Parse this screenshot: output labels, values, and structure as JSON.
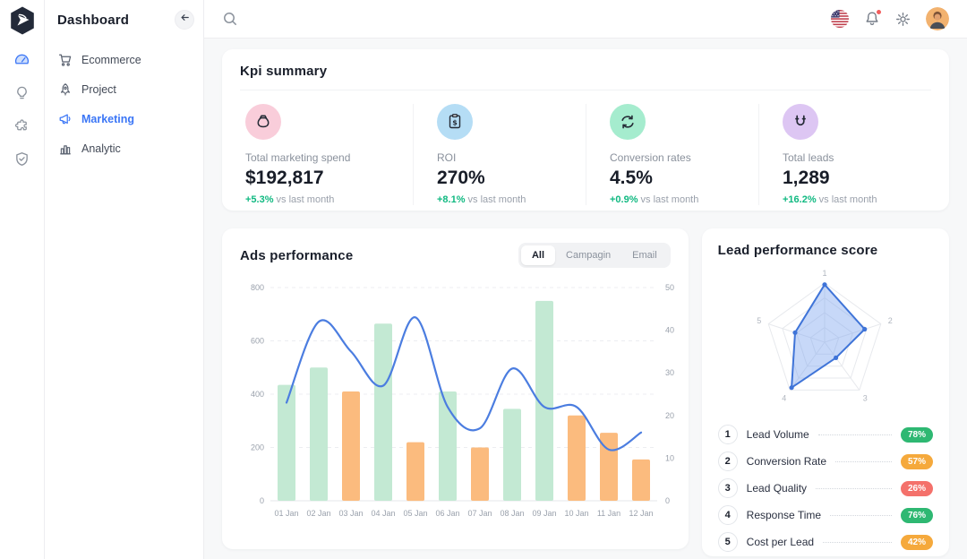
{
  "sidebar": {
    "title": "Dashboard",
    "items": [
      {
        "label": "Ecommerce",
        "icon": "cart-icon",
        "active": false
      },
      {
        "label": "Project",
        "icon": "rocket-icon",
        "active": false
      },
      {
        "label": "Marketing",
        "icon": "megaphone-icon",
        "active": true
      },
      {
        "label": "Analytic",
        "icon": "bar-chart-icon",
        "active": false
      }
    ],
    "active_color": "#3b76f6"
  },
  "rail": {
    "items": [
      {
        "name": "dashboard-icon",
        "active": true
      },
      {
        "name": "lightbulb-icon",
        "active": false
      },
      {
        "name": "puzzle-icon",
        "active": false
      },
      {
        "name": "shield-check-icon",
        "active": false
      }
    ]
  },
  "topbar": {
    "icons": [
      "search-icon",
      "us-flag-icon",
      "bell-icon",
      "gear-icon",
      "avatar"
    ],
    "notification_dot": true
  },
  "kpi": {
    "title": "Kpi summary",
    "change_color": "#10b981",
    "items": [
      {
        "icon": "money-bag-icon",
        "icon_bg": "#f9cdda",
        "label": "Total marketing spend",
        "value": "$192,817",
        "change": "+5.3%",
        "change_suffix": " vs last month"
      },
      {
        "icon": "roi-clipboard-icon",
        "icon_bg": "#b5ddf5",
        "label": "ROI",
        "value": "270%",
        "change": "+8.1%",
        "change_suffix": " vs last month"
      },
      {
        "icon": "conversion-sync-icon",
        "icon_bg": "#a5ecce",
        "label": "Conversion rates",
        "value": "4.5%",
        "change": "+0.9%",
        "change_suffix": " vs last month"
      },
      {
        "icon": "magnet-icon",
        "icon_bg": "#ddc6f3",
        "label": "Total leads",
        "value": "1,289",
        "change": "+16.2%",
        "change_suffix": " vs last month"
      }
    ]
  },
  "ads": {
    "title": "Ads performance",
    "tabs": [
      {
        "label": "All",
        "active": true
      },
      {
        "label": "Campagin",
        "active": false
      },
      {
        "label": "Email",
        "active": false
      }
    ]
  },
  "lead": {
    "title": "Lead performance score"
  },
  "chart_data": [
    {
      "type": "bar",
      "subtype": "bar+line dual-axis combo",
      "title": "Ads performance",
      "categories": [
        "01 Jan",
        "02 Jan",
        "03 Jan",
        "04 Jan",
        "05 Jan",
        "06 Jan",
        "07 Jan",
        "08 Jan",
        "09 Jan",
        "10 Jan",
        "11 Jan",
        "12 Jan"
      ],
      "series": [
        {
          "name": "ads-bars",
          "type": "bar",
          "axis": "left",
          "values": [
            435,
            500,
            410,
            665,
            220,
            410,
            200,
            345,
            750,
            320,
            255,
            155
          ],
          "colors": [
            "green",
            "green",
            "orange",
            "green",
            "orange",
            "green",
            "orange",
            "green",
            "green",
            "orange",
            "orange",
            "orange"
          ]
        },
        {
          "name": "trend-line",
          "type": "line",
          "axis": "right",
          "values": [
            23,
            42,
            35,
            27,
            43,
            22,
            17,
            31,
            22,
            22,
            12,
            16
          ]
        }
      ],
      "left_axis": {
        "ticks": [
          0,
          200,
          400,
          600,
          800
        ],
        "max": 800
      },
      "right_axis": {
        "ticks": [
          0,
          10,
          20,
          30,
          40,
          50
        ],
        "max": 50
      },
      "grid": true,
      "bar_green": "#c3e9d3",
      "bar_orange": "#fbbb7e",
      "line_color": "#4b7de0"
    },
    {
      "type": "radar",
      "title": "Lead performance score",
      "max": 80,
      "fill_color": "rgba(121,163,238,0.42)",
      "stroke_color": "#3f74d8",
      "axes": [
        {
          "n": "1",
          "label": "Lead Volume",
          "value": 78,
          "badge": "78%",
          "badge_color": "#2eb872"
        },
        {
          "n": "2",
          "label": "Conversion Rate",
          "value": 57,
          "badge": "57%",
          "badge_color": "#f5a93c"
        },
        {
          "n": "3",
          "label": "Lead Quality",
          "value": 26,
          "badge": "26%",
          "badge_color": "#f4716b"
        },
        {
          "n": "4",
          "label": "Response Time",
          "value": 76,
          "badge": "76%",
          "badge_color": "#2eb872"
        },
        {
          "n": "5",
          "label": "Cost per Lead",
          "value": 42,
          "badge": "42%",
          "badge_color": "#f5a93c"
        }
      ]
    }
  ]
}
